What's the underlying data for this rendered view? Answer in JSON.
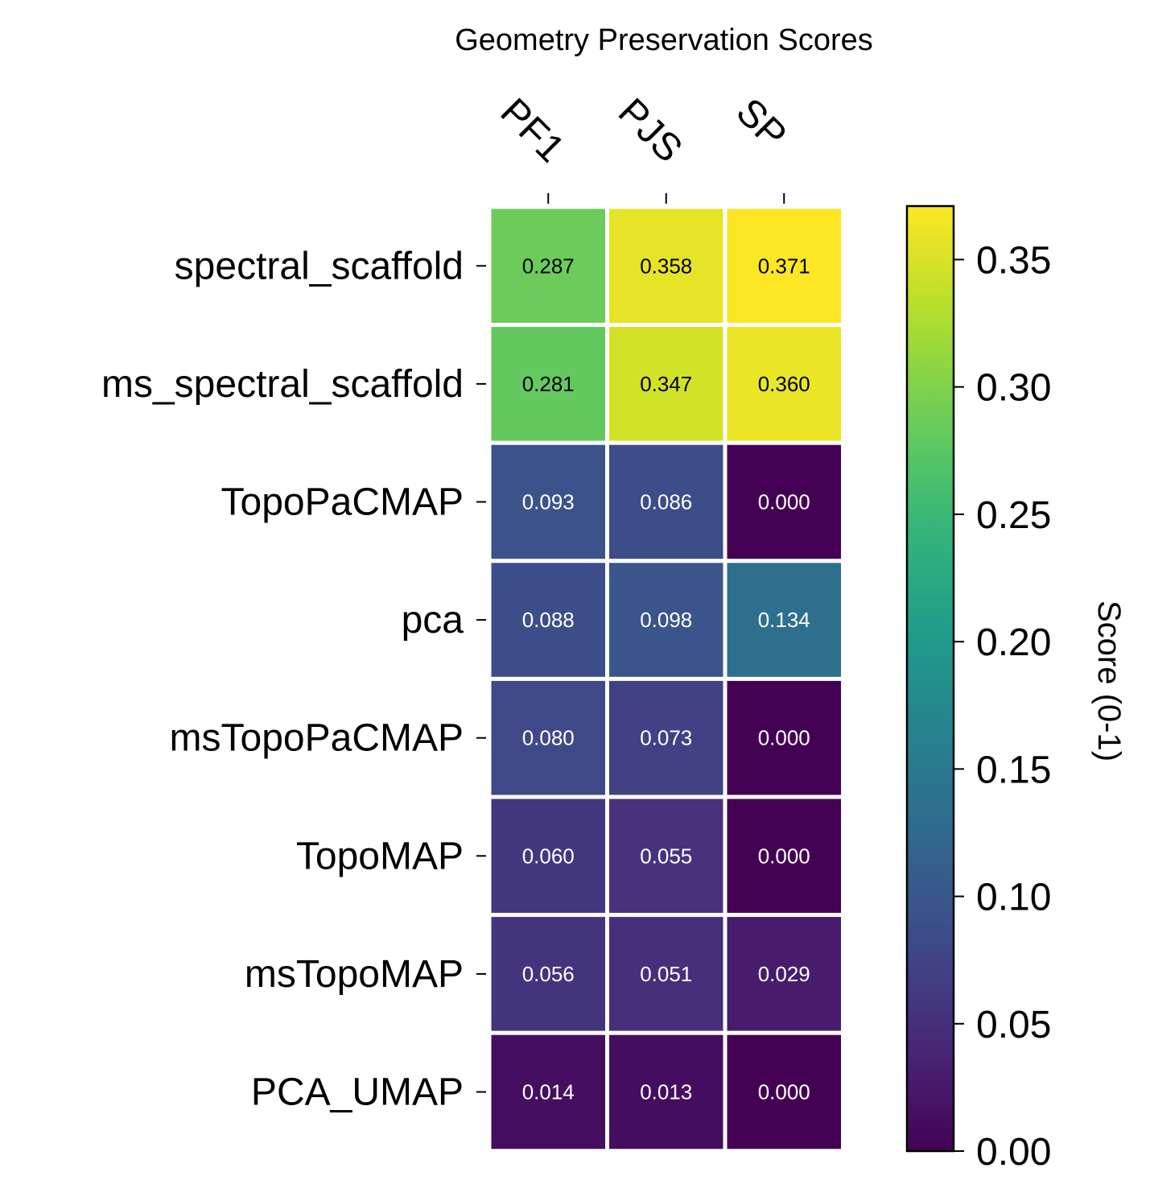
{
  "chart_data": {
    "type": "heatmap",
    "title": "Geometry Preservation Scores",
    "columns": [
      "PF1",
      "PJS",
      "SP"
    ],
    "rows": [
      "spectral_scaffold",
      "ms_spectral_scaffold",
      "TopoPaCMAP",
      "pca",
      "msTopoPaCMAP",
      "TopoMAP",
      "msTopoMAP",
      "PCA_UMAP"
    ],
    "values": [
      [
        0.287,
        0.358,
        0.371
      ],
      [
        0.281,
        0.347,
        0.36
      ],
      [
        0.093,
        0.086,
        0.0
      ],
      [
        0.088,
        0.098,
        0.134
      ],
      [
        0.08,
        0.073,
        0.0
      ],
      [
        0.06,
        0.055,
        0.0
      ],
      [
        0.056,
        0.051,
        0.029
      ],
      [
        0.014,
        0.013,
        0.0
      ]
    ],
    "colorbar": {
      "label": "Score (0-1)",
      "range": [
        0,
        0.371
      ],
      "ticks": [
        0.0,
        0.05,
        0.1,
        0.15,
        0.2,
        0.25,
        0.3,
        0.35
      ],
      "tick_labels": [
        "0.00",
        "0.05",
        "0.10",
        "0.15",
        "0.20",
        "0.25",
        "0.30",
        "0.35"
      ],
      "colormap": "viridis"
    },
    "cell_labels": "three decimals",
    "grid": false
  }
}
